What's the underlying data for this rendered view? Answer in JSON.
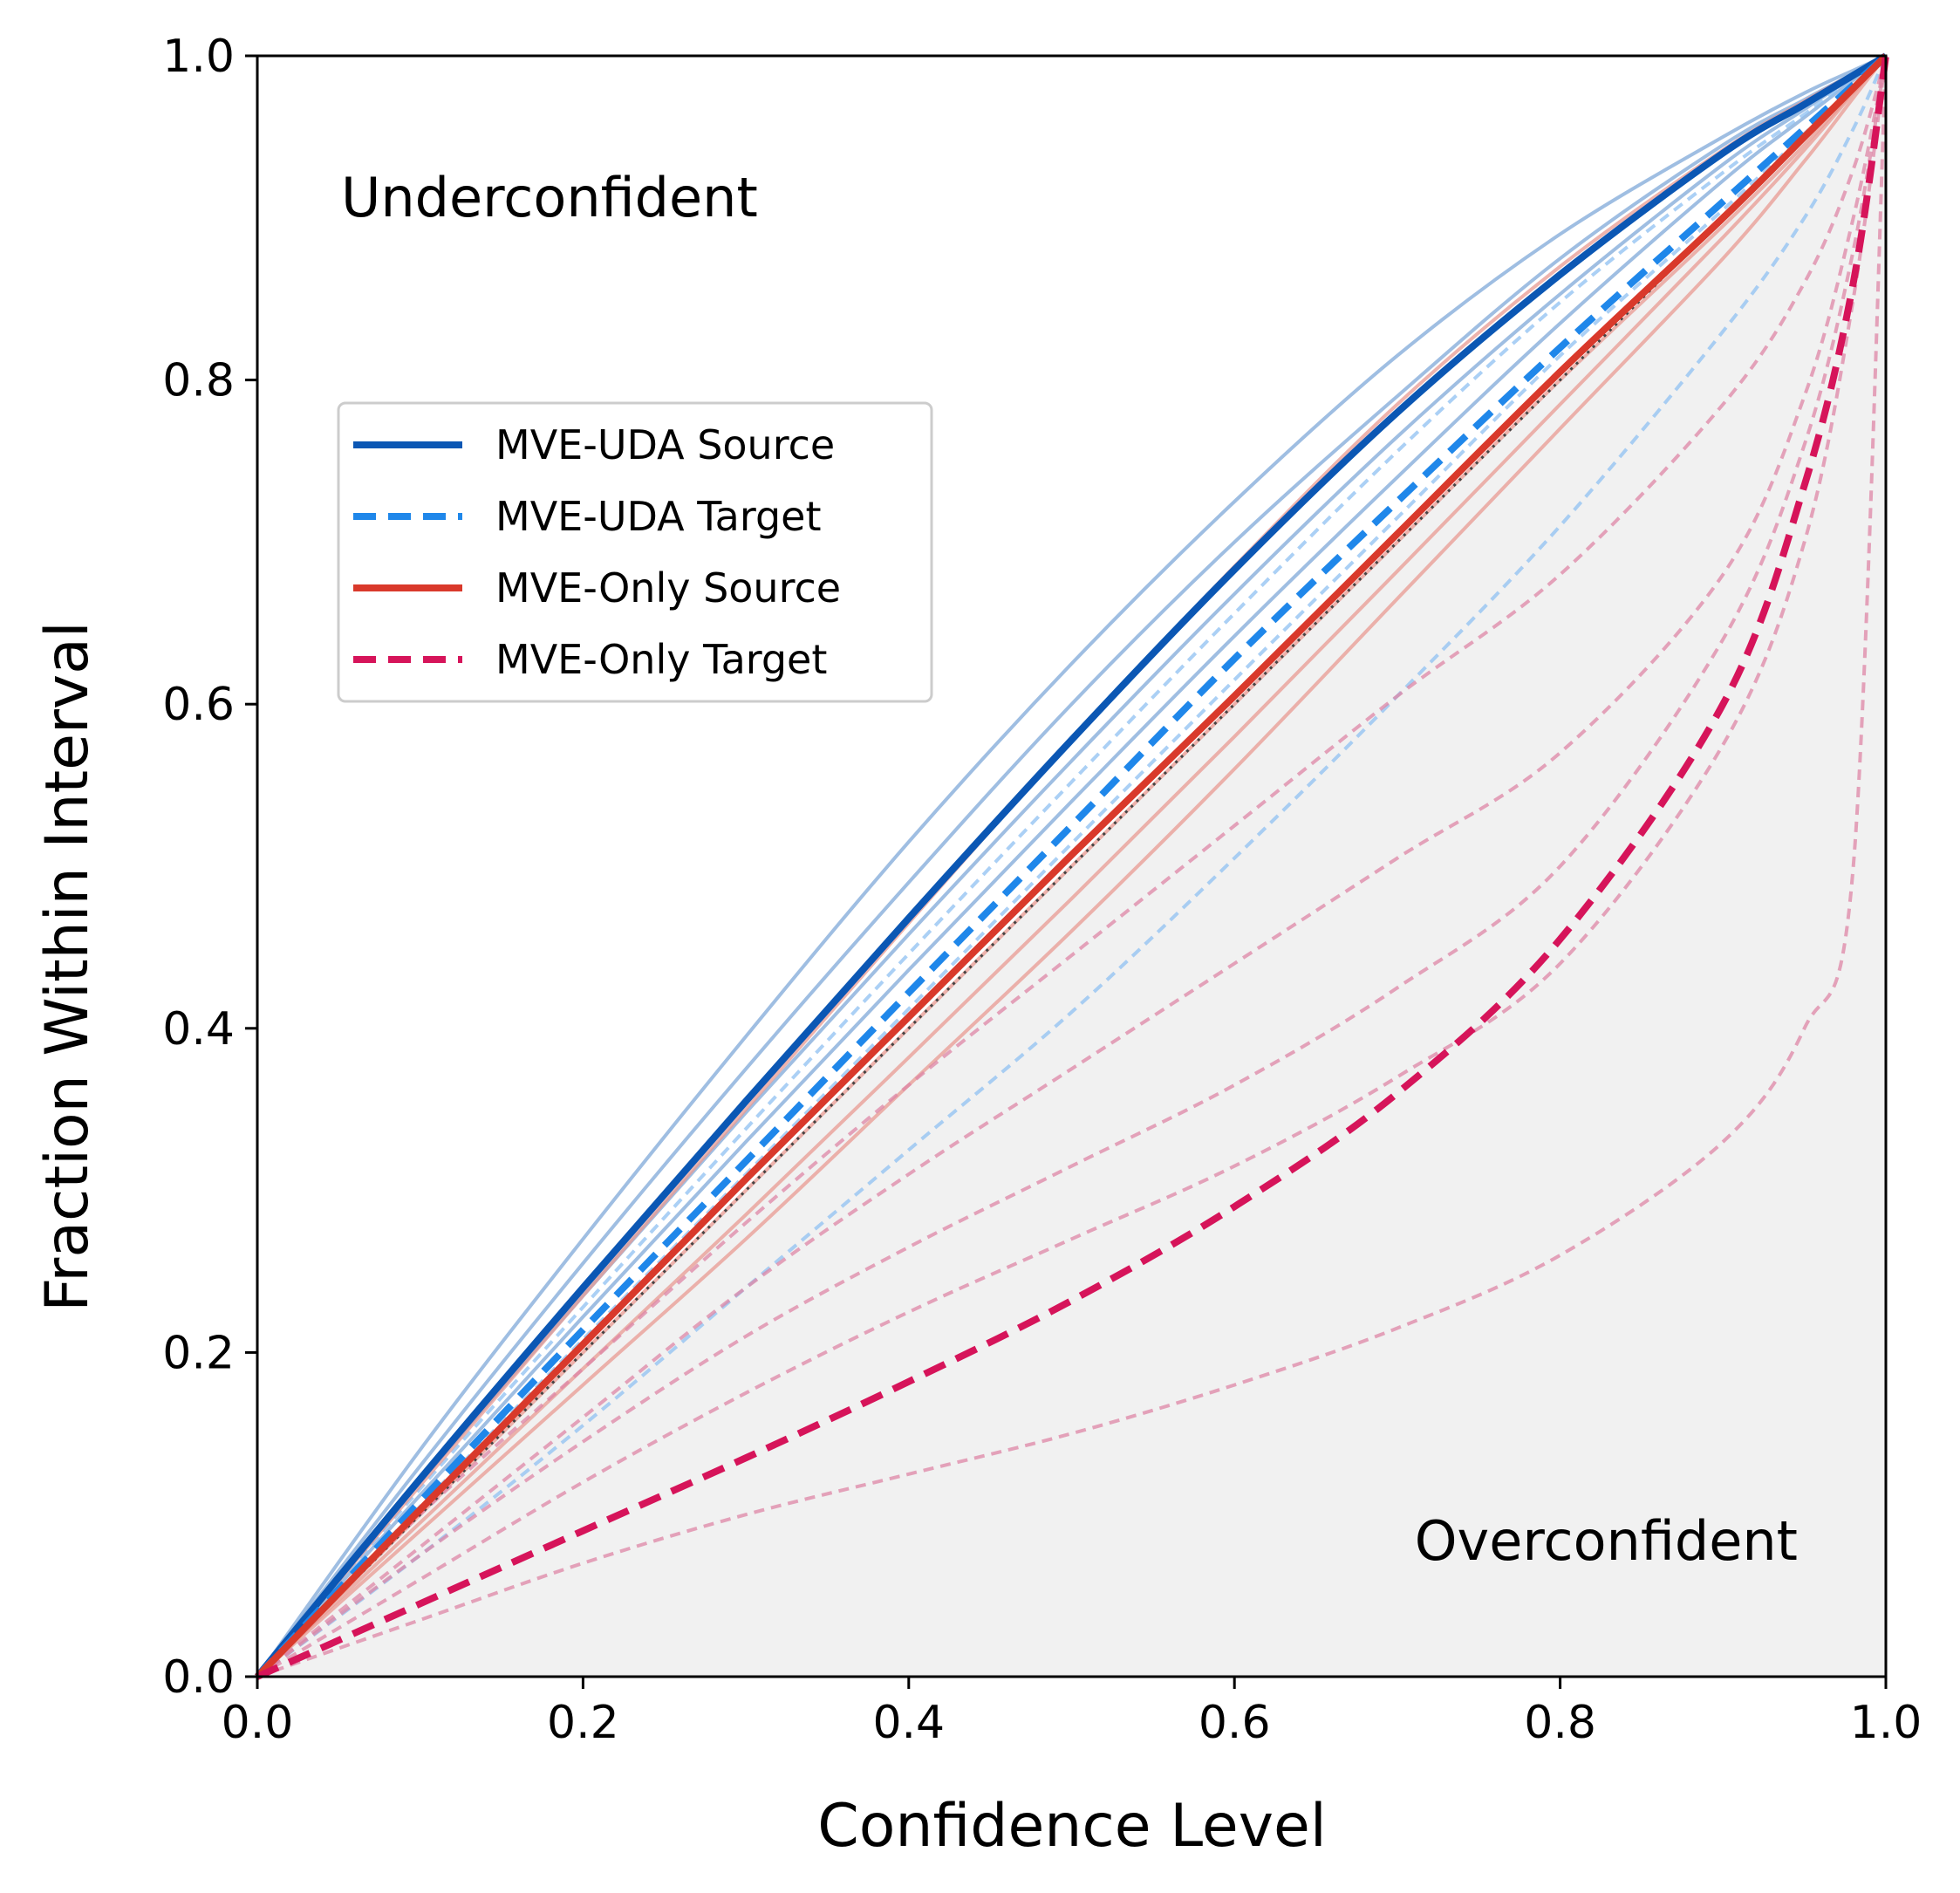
{
  "chart_data": {
    "type": "line",
    "title": "",
    "xlabel": "Confidence Level",
    "ylabel": "Fraction Within Interval",
    "xlim": [
      0,
      1
    ],
    "ylim": [
      0,
      1
    ],
    "x_ticks": [
      "0.0",
      "0.2",
      "0.4",
      "0.6",
      "0.8",
      "1.0"
    ],
    "y_ticks": [
      "0.0",
      "0.2",
      "0.4",
      "0.6",
      "0.8",
      "1.0"
    ],
    "grid": false,
    "legend_position": "upper-left",
    "annotations": {
      "underconfident": "Underconfident",
      "overconfident": "Overconfident"
    },
    "colors": {
      "uda_source": "#0b57b4",
      "uda_target": "#1f87ea",
      "only_source": "#d9392b",
      "only_target": "#d6145a",
      "overconfident_region": "#f1f1f1",
      "diagonal": "#444444"
    },
    "x": [
      0,
      0.1,
      0.2,
      0.3,
      0.4,
      0.5,
      0.6,
      0.7,
      0.8,
      0.9,
      0.95,
      0.98,
      1.0
    ],
    "series": [
      {
        "name": "MVE-UDA Source",
        "style": "solid",
        "main": true,
        "values": [
          0,
          0.122,
          0.24,
          0.355,
          0.468,
          0.578,
          0.683,
          0.78,
          0.865,
          0.94,
          0.97,
          0.988,
          1.0
        ]
      },
      {
        "name": "MVE-UDA Target",
        "style": "dashed",
        "main": true,
        "values": [
          0,
          0.108,
          0.214,
          0.318,
          0.422,
          0.525,
          0.628,
          0.725,
          0.82,
          0.91,
          0.955,
          0.982,
          1.0
        ]
      },
      {
        "name": "MVE-Only Source",
        "style": "solid",
        "main": true,
        "values": [
          0,
          0.103,
          0.205,
          0.307,
          0.407,
          0.507,
          0.605,
          0.705,
          0.805,
          0.9,
          0.95,
          0.98,
          1.0
        ]
      },
      {
        "name": "MVE-Only Target",
        "style": "dashed",
        "main": true,
        "values": [
          0,
          0.045,
          0.09,
          0.135,
          0.182,
          0.232,
          0.29,
          0.36,
          0.455,
          0.6,
          0.735,
          0.86,
          1.0
        ]
      }
    ],
    "faint_series": [
      {
        "group": "uda_source",
        "style": "solid",
        "values": [
          0,
          0.14,
          0.27,
          0.395,
          0.515,
          0.625,
          0.725,
          0.815,
          0.89,
          0.95,
          0.977,
          0.991,
          1.0
        ]
      },
      {
        "group": "uda_source",
        "style": "solid",
        "values": [
          0,
          0.13,
          0.255,
          0.375,
          0.49,
          0.6,
          0.7,
          0.79,
          0.875,
          0.945,
          0.973,
          0.989,
          1.0
        ]
      },
      {
        "group": "uda_source",
        "style": "solid",
        "values": [
          0,
          0.12,
          0.235,
          0.348,
          0.458,
          0.565,
          0.668,
          0.765,
          0.853,
          0.933,
          0.967,
          0.987,
          1.0
        ]
      },
      {
        "group": "uda_source",
        "style": "solid",
        "values": [
          0,
          0.112,
          0.222,
          0.33,
          0.436,
          0.54,
          0.642,
          0.74,
          0.835,
          0.923,
          0.962,
          0.985,
          1.0
        ]
      },
      {
        "group": "uda_target",
        "style": "dashed",
        "values": [
          0,
          0.116,
          0.228,
          0.338,
          0.446,
          0.552,
          0.656,
          0.756,
          0.848,
          0.928,
          0.964,
          0.986,
          1.0
        ]
      },
      {
        "group": "uda_target",
        "style": "dashed",
        "values": [
          0,
          0.105,
          0.208,
          0.31,
          0.412,
          0.514,
          0.615,
          0.715,
          0.815,
          0.905,
          0.952,
          0.981,
          1.0
        ]
      },
      {
        "group": "uda_target",
        "style": "dashed",
        "values": [
          0,
          0.075,
          0.155,
          0.24,
          0.325,
          0.41,
          0.505,
          0.605,
          0.71,
          0.83,
          0.9,
          0.955,
          1.0
        ]
      },
      {
        "group": "only_source",
        "style": "solid",
        "values": [
          0,
          0.118,
          0.235,
          0.35,
          0.465,
          0.578,
          0.685,
          0.785,
          0.87,
          0.942,
          0.972,
          0.989,
          1.0
        ]
      },
      {
        "group": "only_source",
        "style": "solid",
        "values": [
          0,
          0.095,
          0.19,
          0.285,
          0.382,
          0.48,
          0.58,
          0.682,
          0.785,
          0.888,
          0.942,
          0.977,
          1.0
        ]
      },
      {
        "group": "only_source",
        "style": "solid",
        "values": [
          0,
          0.09,
          0.18,
          0.27,
          0.365,
          0.46,
          0.56,
          0.665,
          0.77,
          0.875,
          0.935,
          0.974,
          1.0
        ]
      },
      {
        "group": "only_source",
        "style": "solid",
        "values": [
          0,
          0.1,
          0.2,
          0.3,
          0.4,
          0.5,
          0.6,
          0.7,
          0.8,
          0.895,
          0.945,
          0.978,
          1.0
        ]
      },
      {
        "group": "only_target",
        "style": "dashed",
        "values": [
          0,
          0.1,
          0.19,
          0.28,
          0.365,
          0.445,
          0.525,
          0.605,
          0.68,
          0.785,
          0.86,
          0.93,
          1.0
        ]
      },
      {
        "group": "only_target",
        "style": "dashed",
        "values": [
          0,
          0.08,
          0.16,
          0.24,
          0.31,
          0.375,
          0.44,
          0.505,
          0.57,
          0.68,
          0.79,
          0.9,
          1.0
        ]
      },
      {
        "group": "only_target",
        "style": "dashed",
        "values": [
          0,
          0.075,
          0.145,
          0.21,
          0.265,
          0.315,
          0.365,
          0.425,
          0.5,
          0.64,
          0.76,
          0.88,
          1.0
        ]
      },
      {
        "group": "only_target",
        "style": "dashed",
        "values": [
          0,
          0.06,
          0.12,
          0.175,
          0.225,
          0.27,
          0.315,
          0.37,
          0.44,
          0.575,
          0.7,
          0.85,
          1.0
        ]
      },
      {
        "group": "only_target",
        "style": "dashed",
        "values": [
          0,
          0.035,
          0.07,
          0.1,
          0.125,
          0.15,
          0.18,
          0.215,
          0.26,
          0.33,
          0.4,
          0.5,
          1.0
        ]
      }
    ]
  }
}
